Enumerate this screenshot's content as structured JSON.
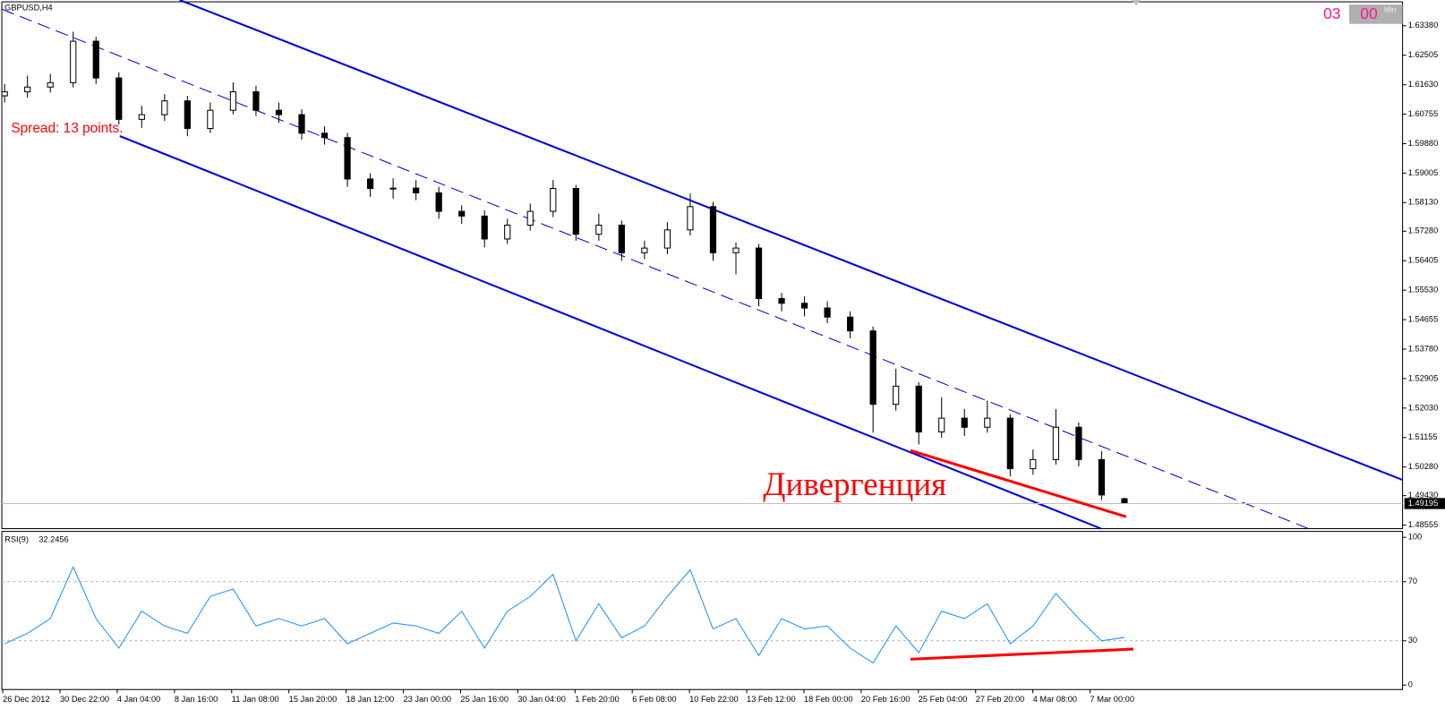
{
  "chart_data": [
    {
      "type": "candlestick",
      "symbol": "GBPUSD,H4",
      "ohlc": [
        [
          1.613,
          1.6165,
          1.611,
          1.6142
        ],
        [
          1.6142,
          1.619,
          1.6125,
          1.6156
        ],
        [
          1.6156,
          1.6195,
          1.614,
          1.6169
        ],
        [
          1.6169,
          1.632,
          1.6155,
          1.6292
        ],
        [
          1.6292,
          1.6305,
          1.6165,
          1.6183
        ],
        [
          1.6183,
          1.62,
          1.6045,
          1.606
        ],
        [
          1.606,
          1.61,
          1.6035,
          1.6074
        ],
        [
          1.6074,
          1.6135,
          1.6055,
          1.6115
        ],
        [
          1.6115,
          1.613,
          1.601,
          1.6033
        ],
        [
          1.6033,
          1.611,
          1.602,
          1.6087
        ],
        [
          1.6087,
          1.617,
          1.6075,
          1.6142
        ],
        [
          1.6142,
          1.616,
          1.607,
          1.6087
        ],
        [
          1.6087,
          1.611,
          1.605,
          1.6074
        ],
        [
          1.6074,
          1.609,
          1.6,
          1.6019
        ],
        [
          1.6019,
          1.604,
          1.5985,
          1.6006
        ],
        [
          1.6006,
          1.602,
          1.586,
          1.5883
        ],
        [
          1.5883,
          1.59,
          1.583,
          1.5855
        ],
        [
          1.5855,
          1.5885,
          1.5825,
          1.5856
        ],
        [
          1.5856,
          1.588,
          1.582,
          1.5842
        ],
        [
          1.5842,
          1.586,
          1.5765,
          1.5787
        ],
        [
          1.5787,
          1.5805,
          1.575,
          1.5773
        ],
        [
          1.5773,
          1.579,
          1.568,
          1.5705
        ],
        [
          1.5705,
          1.5765,
          1.569,
          1.5746
        ],
        [
          1.5746,
          1.581,
          1.573,
          1.5787
        ],
        [
          1.5787,
          1.588,
          1.577,
          1.5855
        ],
        [
          1.5855,
          1.5865,
          1.57,
          1.5719
        ],
        [
          1.5719,
          1.578,
          1.57,
          1.5746
        ],
        [
          1.5746,
          1.576,
          1.564,
          1.5664
        ],
        [
          1.5664,
          1.57,
          1.5645,
          1.5678
        ],
        [
          1.5678,
          1.5755,
          1.566,
          1.5732
        ],
        [
          1.5732,
          1.584,
          1.5715,
          1.5801
        ],
        [
          1.5801,
          1.5815,
          1.564,
          1.5664
        ],
        [
          1.5664,
          1.5695,
          1.56,
          1.5678
        ],
        [
          1.5678,
          1.569,
          1.5505,
          1.5528
        ],
        [
          1.5528,
          1.5545,
          1.549,
          1.5514
        ],
        [
          1.5514,
          1.5535,
          1.5475,
          1.55
        ],
        [
          1.55,
          1.552,
          1.5455,
          1.5473
        ],
        [
          1.5473,
          1.549,
          1.541,
          1.5432
        ],
        [
          1.5432,
          1.5445,
          1.513,
          1.5214
        ],
        [
          1.5214,
          1.532,
          1.5195,
          1.5268
        ],
        [
          1.5268,
          1.528,
          1.5095,
          1.5132
        ],
        [
          1.5132,
          1.5235,
          1.5115,
          1.5173
        ],
        [
          1.5173,
          1.52,
          1.512,
          1.5146
        ],
        [
          1.5146,
          1.5225,
          1.513,
          1.5173
        ],
        [
          1.5173,
          1.5185,
          1.5,
          1.5023
        ],
        [
          1.5023,
          1.508,
          1.5005,
          1.505
        ],
        [
          1.505,
          1.52,
          1.5035,
          1.5146
        ],
        [
          1.5146,
          1.516,
          1.503,
          1.505
        ],
        [
          1.505,
          1.5075,
          1.493,
          1.4945
        ],
        [
          1.49338,
          1.49369,
          1.49187,
          1.49195
        ]
      ],
      "ylim": [
        1.4845,
        1.6409
      ],
      "yticks": [
        {
          "value": 1.6338,
          "label": "1.63380"
        },
        {
          "value": 1.62505,
          "label": "1.62505"
        },
        {
          "value": 1.6163,
          "label": "1.61630"
        },
        {
          "value": 1.60755,
          "label": "1.60755"
        },
        {
          "value": 1.5988,
          "label": "1.59880"
        },
        {
          "value": 1.59005,
          "label": "1.59005"
        },
        {
          "value": 1.5813,
          "label": "1.58130"
        },
        {
          "value": 1.5728,
          "label": "1.57280"
        },
        {
          "value": 1.56405,
          "label": "1.56405"
        },
        {
          "value": 1.5553,
          "label": "1.55530"
        },
        {
          "value": 1.54655,
          "label": "1.54655"
        },
        {
          "value": 1.5378,
          "label": "1.53780"
        },
        {
          "value": 1.52905,
          "label": "1.52905"
        },
        {
          "value": 1.5203,
          "label": "1.52030"
        },
        {
          "value": 1.51155,
          "label": "1.51155"
        },
        {
          "value": 1.5028,
          "label": "1.50280"
        },
        {
          "value": 1.4943,
          "label": "1.49430"
        },
        {
          "value": 1.48555,
          "label": "1.48555"
        }
      ],
      "x_labels": [
        "26 Dec 2012",
        "30 Dec 22:00",
        "4 Jan 04:00",
        "8 Jan 16:00",
        "11 Jan 08:00",
        "15 Jan 20:00",
        "18 Jan 12:00",
        "23 Jan 00:00",
        "25 Jan 16:00",
        "30 Jan 04:00",
        "1 Feb 20:00",
        "6 Feb 08:00",
        "10 Feb 22:00",
        "13 Feb 12:00",
        "18 Feb 00:00",
        "20 Feb 16:00",
        "25 Feb 04:00",
        "27 Feb 20:00",
        "4 Mar 08:00",
        "7 Mar 00:00"
      ],
      "annotations": [
        "Spread: 13 points.",
        "Дивергенция"
      ]
    },
    {
      "type": "line",
      "title": "RSI(9)",
      "color": "#1e90ff",
      "values": [
        28,
        35,
        45,
        80,
        45,
        25,
        50,
        40,
        35,
        60,
        65,
        40,
        45,
        40,
        45,
        28,
        35,
        42,
        40,
        35,
        50,
        25,
        50,
        60,
        75,
        30,
        55,
        32,
        40,
        60,
        78,
        38,
        45,
        20,
        45,
        38,
        40,
        25,
        15,
        40,
        22,
        50,
        45,
        55,
        28,
        40,
        62,
        45,
        30,
        32.2456
      ],
      "ylim": [
        -3,
        104
      ],
      "yticks": [
        100,
        70,
        30,
        0
      ],
      "grid": true
    }
  ],
  "clock": {
    "hour": "03",
    "minute": "00",
    "unit": "Min"
  }
}
